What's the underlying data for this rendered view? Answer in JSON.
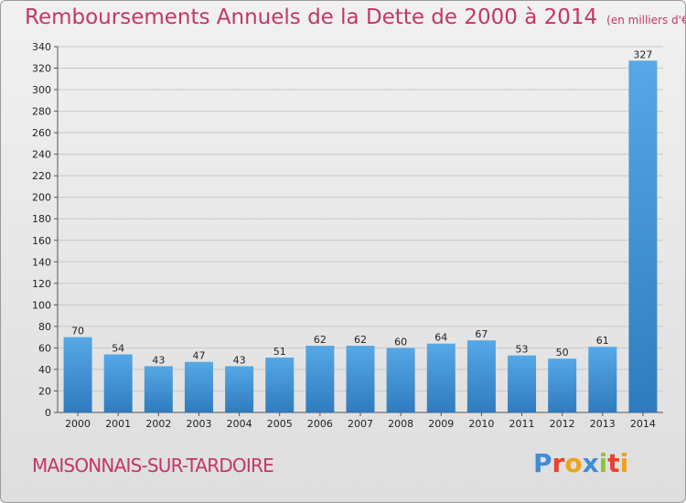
{
  "header": {
    "title": "Remboursements Annuels de la Dette de 2000 à 2014",
    "unit": "(en milliers d'€)"
  },
  "footer": {
    "commune": "MAISONNAIS-SUR-TARDOIRE",
    "logo_text": "Proxiti",
    "logo_colors": [
      "#3d8ed6",
      "#e8412f",
      "#f0a21a",
      "#3d8ed6",
      "#8cc63f",
      "#e8412f",
      "#f0a21a"
    ]
  },
  "colors": {
    "title": "#c2366a",
    "bar_light": "#56a8e6",
    "bar_dark": "#2f7bbf"
  },
  "chart_data": {
    "type": "bar",
    "categories": [
      "2000",
      "2001",
      "2002",
      "2003",
      "2004",
      "2005",
      "2006",
      "2007",
      "2008",
      "2009",
      "2010",
      "2011",
      "2012",
      "2013",
      "2014"
    ],
    "values": [
      70,
      54,
      43,
      47,
      43,
      51,
      62,
      62,
      60,
      64,
      67,
      53,
      50,
      61,
      327
    ],
    "title": "Remboursements Annuels de la Dette de 2000 à 2014",
    "xlabel": "",
    "ylabel": "",
    "ylim": [
      0,
      340
    ],
    "yticks": [
      0,
      20,
      40,
      60,
      80,
      100,
      120,
      140,
      160,
      180,
      200,
      220,
      240,
      260,
      280,
      300,
      320,
      340
    ],
    "grid": true,
    "legend": "none"
  }
}
